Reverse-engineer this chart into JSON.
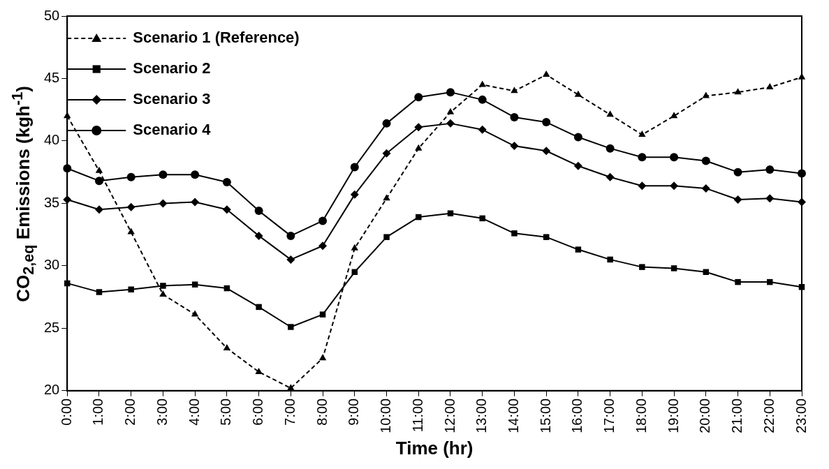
{
  "chart_data": {
    "type": "line",
    "xlabel": "Time (hr)",
    "ylabel": "CO$_{2,eq}$ Emissions (kgh$^{-1}$)",
    "categories": [
      "0:00",
      "1:00",
      "2:00",
      "3:00",
      "4:00",
      "5:00",
      "6:00",
      "7:00",
      "8:00",
      "9:00",
      "10:00",
      "11:00",
      "12:00",
      "13:00",
      "14:00",
      "15:00",
      "16:00",
      "17:00",
      "18:00",
      "19:00",
      "20:00",
      "21:00",
      "22:00",
      "23:00"
    ],
    "ylim": [
      20,
      50
    ],
    "yticks": [
      20,
      25,
      30,
      35,
      40,
      45,
      50
    ],
    "grid": false,
    "legend": "top left",
    "series": [
      {
        "name": "Scenario 1 (Reference)",
        "color": "#000000",
        "marker": "triangle",
        "line_style": "dashed",
        "values": [
          42.0,
          37.6,
          32.7,
          27.7,
          26.1,
          23.4,
          21.5,
          20.2,
          22.6,
          31.4,
          35.4,
          39.4,
          42.3,
          44.5,
          44.0,
          45.3,
          43.7,
          42.1,
          40.5,
          42.0,
          43.6,
          43.9,
          44.3,
          45.1
        ]
      },
      {
        "name": "Scenario 2",
        "color": "#000000",
        "marker": "square",
        "line_style": "solid",
        "values": [
          28.6,
          27.9,
          28.1,
          28.4,
          28.5,
          28.2,
          26.7,
          25.1,
          26.1,
          29.5,
          32.3,
          33.9,
          34.2,
          33.8,
          32.6,
          32.3,
          31.3,
          30.5,
          29.9,
          29.8,
          29.5,
          28.7,
          28.7,
          28.3
        ]
      },
      {
        "name": "Scenario 3",
        "color": "#000000",
        "marker": "diamond",
        "line_style": "solid",
        "values": [
          35.3,
          34.5,
          34.7,
          35.0,
          35.1,
          34.5,
          32.4,
          30.5,
          31.6,
          35.7,
          39.0,
          41.1,
          41.4,
          40.9,
          39.6,
          39.2,
          38.0,
          37.1,
          36.4,
          36.4,
          36.2,
          35.3,
          35.4,
          35.1
        ]
      },
      {
        "name": "Scenario 4",
        "color": "#000000",
        "marker": "circle",
        "line_style": "solid",
        "values": [
          37.8,
          36.8,
          37.1,
          37.3,
          37.3,
          36.7,
          34.4,
          32.4,
          33.6,
          37.9,
          41.4,
          43.5,
          43.9,
          43.3,
          41.9,
          41.5,
          40.3,
          39.4,
          38.7,
          38.7,
          38.4,
          37.5,
          37.7,
          37.4
        ]
      }
    ]
  }
}
